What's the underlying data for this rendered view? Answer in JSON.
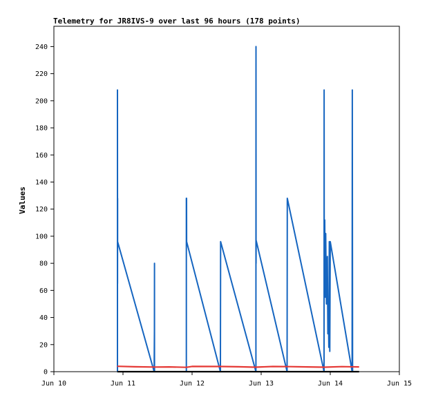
{
  "chart_data": {
    "type": "line",
    "title": "Telemetry for JR8IVS-9 over last 96 hours (178 points)",
    "xlabel": "",
    "ylabel": "Values",
    "x_axis_type": "date",
    "xlim": [
      "2025-06-10T00:00",
      "2025-06-15T00:00"
    ],
    "ylim": [
      0,
      255
    ],
    "x_ticks": [
      {
        "x": "2025-06-10T00:00",
        "label": "Jun 10"
      },
      {
        "x": "2025-06-11T00:00",
        "label": "Jun 11"
      },
      {
        "x": "2025-06-12T00:00",
        "label": "Jun 12"
      },
      {
        "x": "2025-06-13T00:00",
        "label": "Jun 13"
      },
      {
        "x": "2025-06-14T00:00",
        "label": "Jun 14"
      },
      {
        "x": "2025-06-15T00:00",
        "label": "Jun 15"
      }
    ],
    "y_ticks": [
      0,
      20,
      40,
      60,
      80,
      100,
      120,
      140,
      160,
      180,
      200,
      220,
      240
    ],
    "grid": false,
    "legend": "none",
    "series": [
      {
        "color": "#1565c0",
        "points": [
          [
            "2025-06-10T22:05",
            0
          ],
          [
            "2025-06-10T22:05",
            208
          ],
          [
            "2025-06-10T22:06",
            65
          ],
          [
            "2025-06-10T22:07",
            128
          ],
          [
            "2025-06-10T22:08",
            96
          ],
          [
            "2025-06-11T10:50",
            0
          ],
          [
            "2025-06-11T10:55",
            30
          ],
          [
            "2025-06-11T10:56",
            80
          ],
          [
            "2025-06-11T10:57",
            0
          ],
          [
            "2025-06-11T22:00",
            0
          ],
          [
            "2025-06-11T22:00",
            128
          ],
          [
            "2025-06-11T22:05",
            128
          ],
          [
            "2025-06-11T22:06",
            96
          ],
          [
            "2025-06-12T09:50",
            0
          ],
          [
            "2025-06-12T09:55",
            96
          ],
          [
            "2025-06-12T22:10",
            0
          ],
          [
            "2025-06-12T22:12",
            240
          ],
          [
            "2025-06-12T22:14",
            80
          ],
          [
            "2025-06-12T22:15",
            97
          ],
          [
            "2025-06-13T09:00",
            0
          ],
          [
            "2025-06-13T09:05",
            128
          ],
          [
            "2025-06-13T21:50",
            0
          ],
          [
            "2025-06-13T21:52",
            208
          ],
          [
            "2025-06-13T21:55",
            60
          ],
          [
            "2025-06-13T22:05",
            112
          ],
          [
            "2025-06-13T22:15",
            55
          ],
          [
            "2025-06-13T22:25",
            102
          ],
          [
            "2025-06-13T22:40",
            50
          ],
          [
            "2025-06-13T23:00",
            85
          ],
          [
            "2025-06-13T23:10",
            28
          ],
          [
            "2025-06-13T23:20",
            48
          ],
          [
            "2025-06-13T23:30",
            18
          ],
          [
            "2025-06-13T23:40",
            96
          ],
          [
            "2025-06-13T23:50",
            15
          ],
          [
            "2025-06-14T00:00",
            96
          ],
          [
            "2025-06-14T07:35",
            0
          ],
          [
            "2025-06-14T07:40",
            208
          ],
          [
            "2025-06-14T07:45",
            0
          ]
        ]
      },
      {
        "color": "#e53935",
        "points": [
          [
            "2025-06-10T22:00",
            4.0
          ],
          [
            "2025-06-11T04:00",
            3.6
          ],
          [
            "2025-06-11T11:00",
            3.4
          ],
          [
            "2025-06-11T16:00",
            3.5
          ],
          [
            "2025-06-11T22:00",
            3.2
          ],
          [
            "2025-06-12T00:00",
            3.9
          ],
          [
            "2025-06-12T10:00",
            3.8
          ],
          [
            "2025-06-12T16:00",
            3.6
          ],
          [
            "2025-06-12T22:00",
            3.3
          ],
          [
            "2025-06-13T04:00",
            3.8
          ],
          [
            "2025-06-13T10:00",
            3.7
          ],
          [
            "2025-06-13T16:00",
            3.5
          ],
          [
            "2025-06-13T22:00",
            3.3
          ],
          [
            "2025-06-14T04:00",
            3.7
          ],
          [
            "2025-06-14T10:00",
            3.5
          ]
        ]
      },
      {
        "color": "#000000",
        "points": [
          [
            "2025-06-10T22:00",
            0
          ],
          [
            "2025-06-14T10:00",
            0
          ]
        ]
      }
    ]
  }
}
